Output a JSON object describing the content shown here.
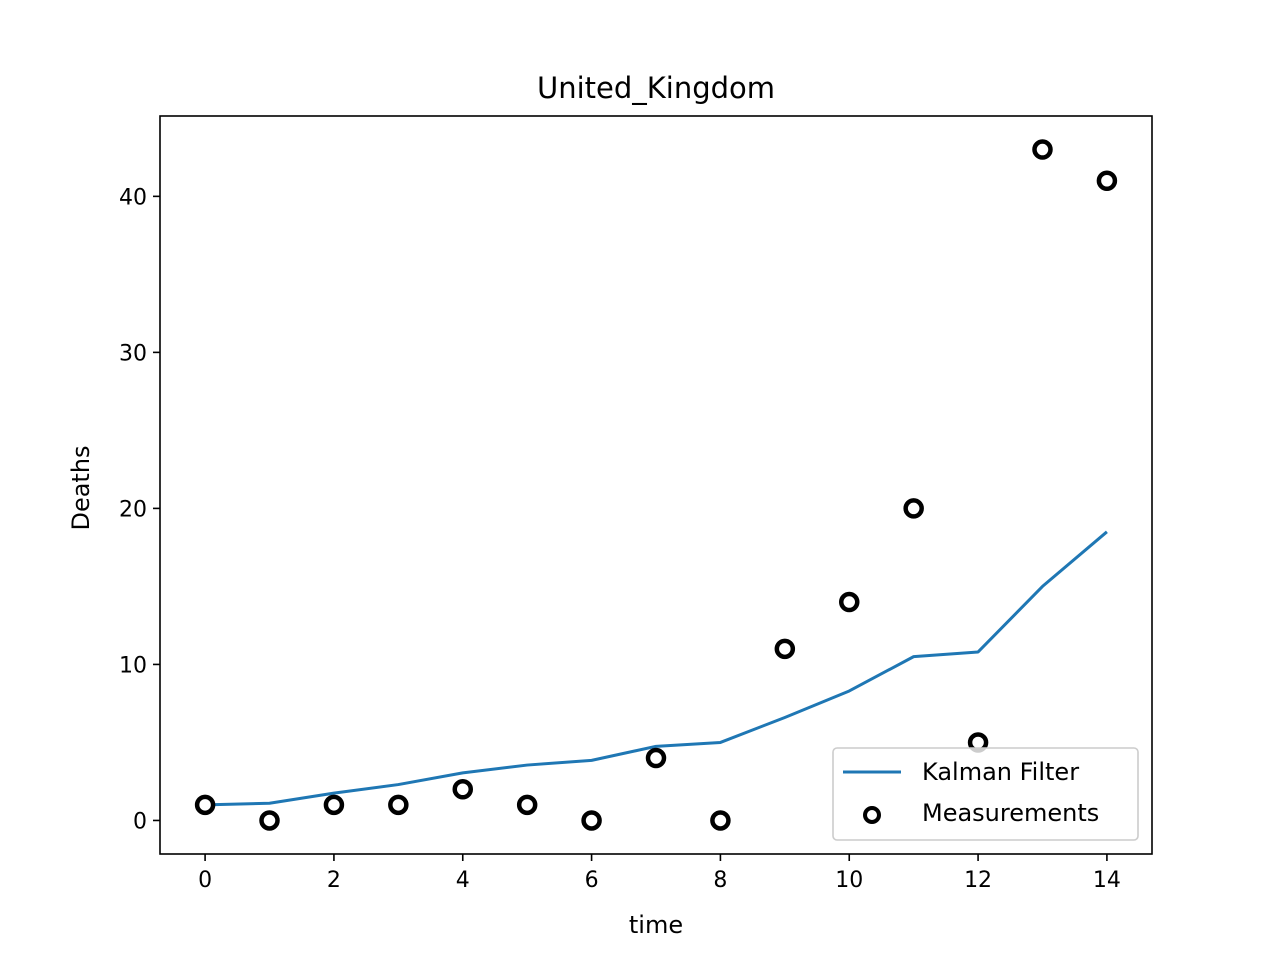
{
  "chart_data": {
    "type": "line",
    "title": "United_Kingdom",
    "xlabel": "time",
    "ylabel": "Deaths",
    "xlim": [
      -0.7,
      14.7
    ],
    "ylim": [
      -2.15,
      45.15
    ],
    "xticks": [
      0,
      2,
      4,
      6,
      8,
      10,
      12,
      14
    ],
    "yticks": [
      0,
      10,
      20,
      30,
      40
    ],
    "grid": false,
    "legend_position": "lower-right",
    "series": [
      {
        "name": "Kalman Filter",
        "kind": "line",
        "color": "#1f77b4",
        "x": [
          0,
          1,
          2,
          3,
          4,
          5,
          6,
          7,
          8,
          9,
          10,
          11,
          12,
          13,
          14
        ],
        "y": [
          1.0,
          1.1,
          1.75,
          2.3,
          3.05,
          3.55,
          3.85,
          4.75,
          5.0,
          6.6,
          8.3,
          10.5,
          10.8,
          15.0,
          18.5
        ]
      },
      {
        "name": "Measurements",
        "kind": "scatter",
        "color": "#000000",
        "x": [
          0,
          1,
          2,
          3,
          4,
          5,
          6,
          7,
          8,
          9,
          10,
          11,
          12,
          13,
          14
        ],
        "y": [
          1,
          0,
          1,
          1,
          2,
          1,
          0,
          4,
          0,
          11,
          14,
          20,
          5,
          43,
          41
        ]
      }
    ]
  }
}
